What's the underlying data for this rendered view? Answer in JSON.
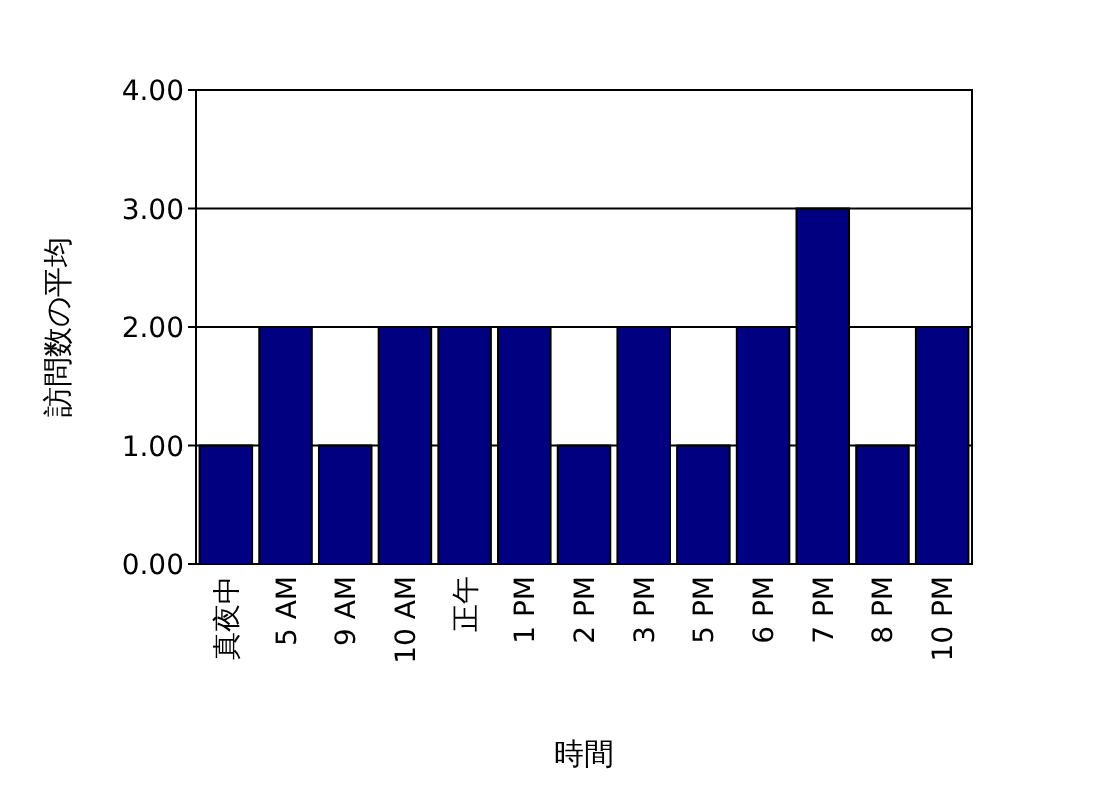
{
  "chart_data": {
    "type": "bar",
    "xlabel": "時間",
    "ylabel": "訪問数の平均",
    "categories": [
      "真夜中",
      "5 AM",
      "9 AM",
      "10 AM",
      "正午",
      "1 PM",
      "2 PM",
      "3 PM",
      "5 PM",
      "6 PM",
      "7 PM",
      "8 PM",
      "10 PM"
    ],
    "values": [
      1,
      2,
      1,
      2,
      2,
      2,
      1,
      2,
      1,
      2,
      3,
      1,
      2
    ],
    "color": "#000080",
    "ylim": [
      0,
      4
    ],
    "yticks": [
      {
        "value": 0,
        "label": "0.00"
      },
      {
        "value": 1,
        "label": "1.00"
      },
      {
        "value": 2,
        "label": "2.00"
      },
      {
        "value": 3,
        "label": "3.00"
      },
      {
        "value": 4,
        "label": "4.00"
      }
    ],
    "grid": "y"
  }
}
